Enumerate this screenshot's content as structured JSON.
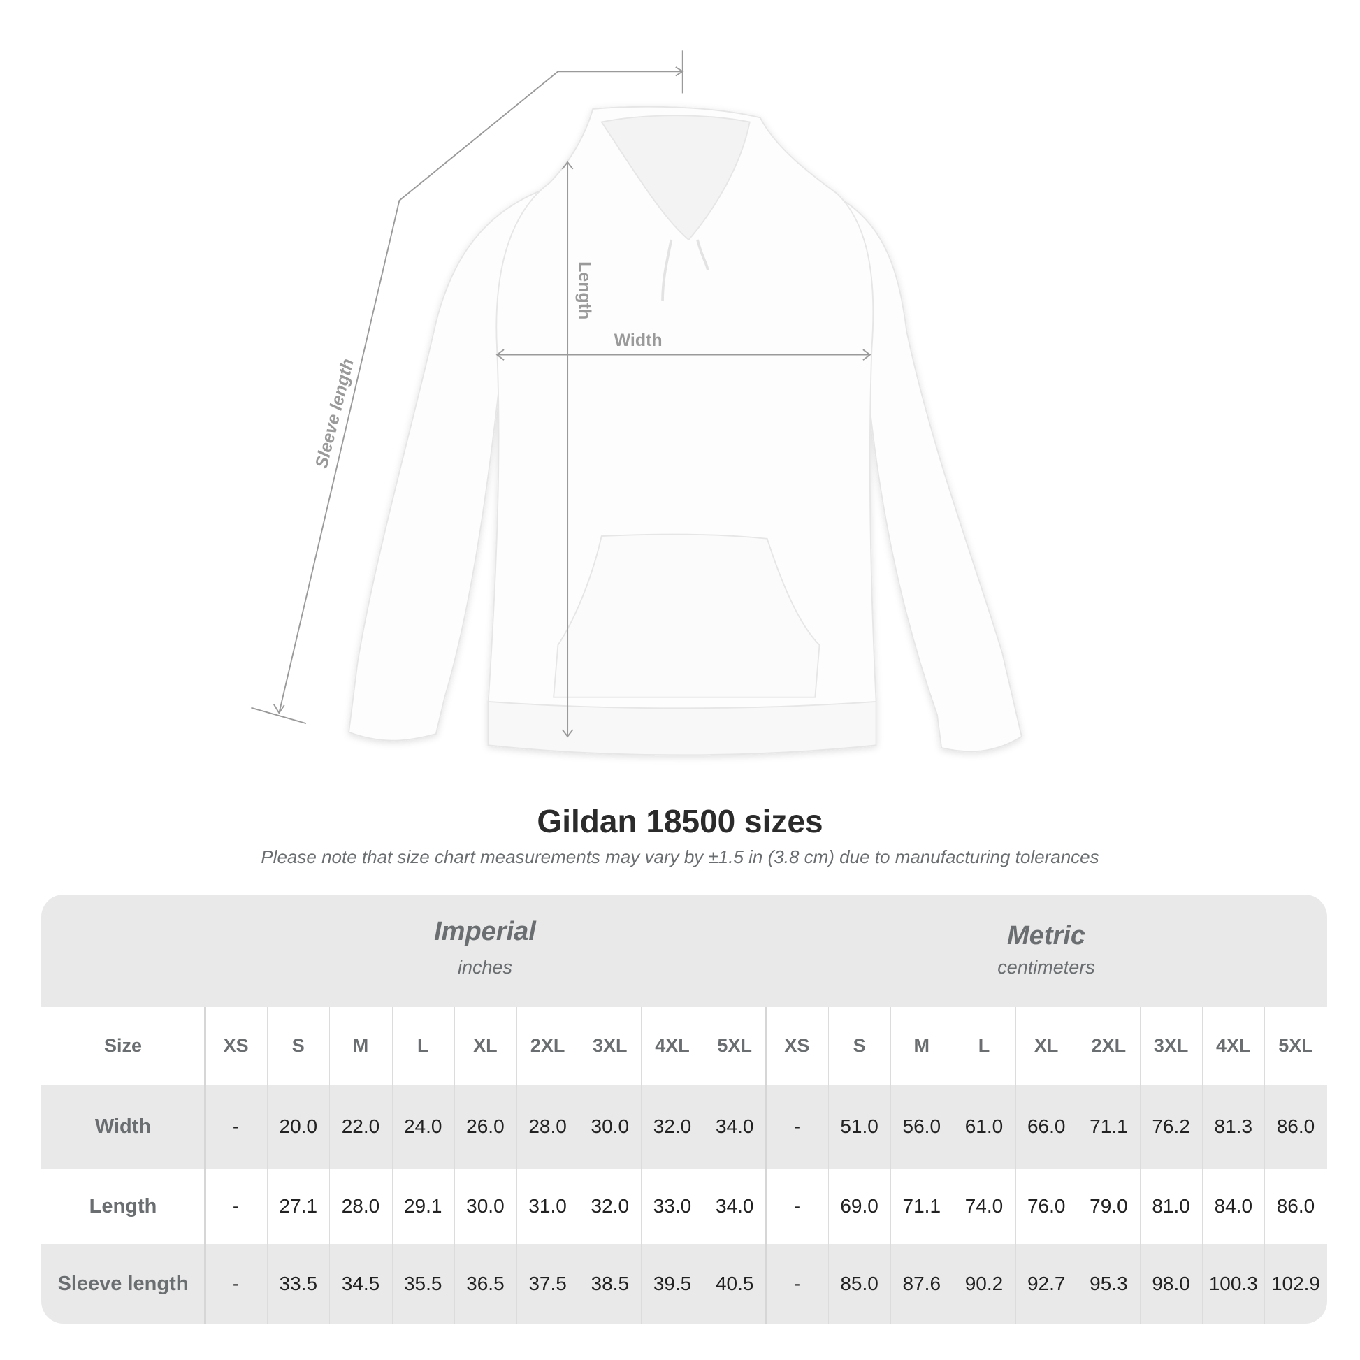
{
  "illustration": {
    "labels": {
      "length": "Length",
      "width": "Width",
      "sleeve": "Sleeve length"
    },
    "garment_color": "#ffffff",
    "line_color": "#9a9a9a"
  },
  "title": "Gildan 18500 sizes",
  "subtitle": "Please note that size chart measurements may vary by ±1.5 in (3.8 cm) due to manufacturing tolerances",
  "table": {
    "imperial": {
      "name": "Imperial",
      "unit": "inches"
    },
    "metric": {
      "name": "Metric",
      "unit": "centimeters"
    },
    "size_label": "Size",
    "sizes": [
      "XS",
      "S",
      "M",
      "L",
      "XL",
      "2XL",
      "3XL",
      "4XL",
      "5XL"
    ],
    "rows": [
      {
        "label": "Width",
        "imperial": [
          "-",
          "20.0",
          "22.0",
          "24.0",
          "26.0",
          "28.0",
          "30.0",
          "32.0",
          "34.0"
        ],
        "metric": [
          "-",
          "51.0",
          "56.0",
          "61.0",
          "66.0",
          "71.1",
          "76.2",
          "81.3",
          "86.0"
        ]
      },
      {
        "label": "Length",
        "imperial": [
          "-",
          "27.1",
          "28.0",
          "29.1",
          "30.0",
          "31.0",
          "32.0",
          "33.0",
          "34.0"
        ],
        "metric": [
          "-",
          "69.0",
          "71.1",
          "74.0",
          "76.0",
          "79.0",
          "81.0",
          "84.0",
          "86.0"
        ]
      },
      {
        "label": "Sleeve length",
        "imperial": [
          "-",
          "33.5",
          "34.5",
          "35.5",
          "36.5",
          "37.5",
          "38.5",
          "39.5",
          "40.5"
        ],
        "metric": [
          "-",
          "85.0",
          "87.6",
          "90.2",
          "92.7",
          "95.3",
          "98.0",
          "100.3",
          "102.9"
        ]
      }
    ],
    "band_color": "#e9e9e9"
  }
}
